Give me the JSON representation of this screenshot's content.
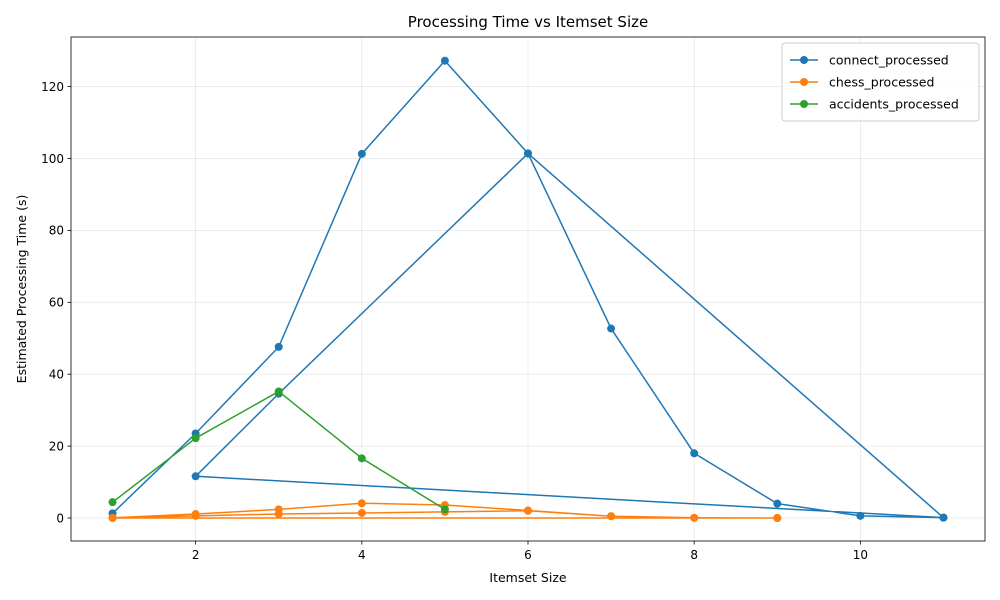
{
  "chart_data": {
    "type": "line",
    "title": "Processing Time vs Itemset Size",
    "xlabel": "Itemset Size",
    "ylabel": "Estimated Processing Time (s)",
    "xlim": [
      0.5,
      11.5
    ],
    "ylim": [
      -6.4,
      133.8
    ],
    "xticks": [
      2,
      4,
      6,
      8,
      10
    ],
    "yticks": [
      0,
      20,
      40,
      60,
      80,
      100,
      120
    ],
    "grid": true,
    "legend_position": "upper right",
    "series": [
      {
        "name": "connect_processed",
        "color": "#1f77b4",
        "x": [
          1,
          2,
          3,
          4,
          5,
          6,
          7,
          8,
          9,
          10,
          11,
          2,
          3,
          6,
          11
        ],
        "y": [
          1.3,
          23.5,
          47.6,
          101.3,
          127.2,
          101.4,
          52.7,
          18.0,
          4.0,
          0.6,
          0.1,
          11.6,
          34.6,
          101.4,
          0.1
        ]
      },
      {
        "name": "chess_processed",
        "color": "#ff7f0e",
        "x": [
          1,
          2,
          3,
          4,
          5,
          6,
          7,
          8,
          9,
          1,
          2,
          3,
          4,
          5,
          6,
          7,
          8,
          9
        ],
        "y": [
          0.05,
          1.1,
          2.4,
          4.1,
          3.6,
          2.1,
          0.5,
          0.05,
          0.0,
          0.0,
          0.6,
          1.1,
          1.4,
          1.7,
          2.0,
          0.5,
          0.05,
          0.0
        ]
      },
      {
        "name": "accidents_processed",
        "color": "#2ca02c",
        "x": [
          1,
          2,
          3,
          4,
          5
        ],
        "y": [
          4.4,
          22.2,
          35.2,
          16.6,
          2.4
        ]
      }
    ]
  }
}
